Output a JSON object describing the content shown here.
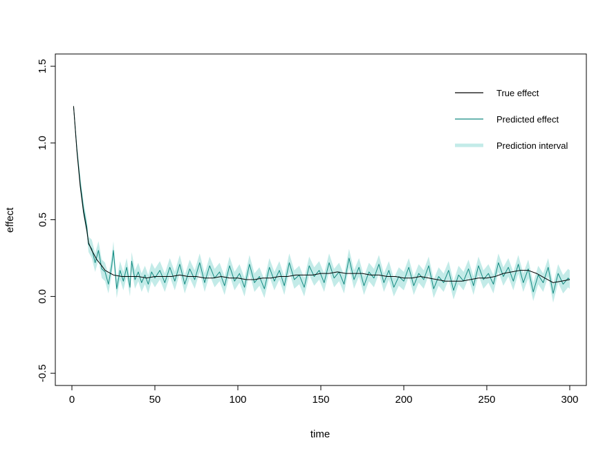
{
  "chart_data": {
    "type": "line",
    "xlabel": "time",
    "ylabel": "effect",
    "xlim": [
      -10,
      310
    ],
    "ylim": [
      -0.58,
      1.58
    ],
    "xticks": [
      0,
      50,
      100,
      150,
      200,
      250,
      300
    ],
    "yticks": [
      -0.5,
      0.0,
      0.5,
      1.0,
      1.5
    ],
    "xtick_labels": [
      "0",
      "50",
      "100",
      "150",
      "200",
      "250",
      "300"
    ],
    "ytick_labels": [
      "-0.5",
      "0.0",
      "0.5",
      "1.0",
      "1.5"
    ],
    "legend_position": "top-right",
    "colors": {
      "true_effect": "#000000",
      "predicted_effect": "#138a80",
      "interval": "#c3ebe8"
    },
    "series": [
      {
        "name": "True effect",
        "x": [
          1,
          3,
          5,
          7,
          9,
          10,
          12,
          15,
          18,
          20,
          25,
          30,
          35,
          40,
          45,
          50,
          55,
          60,
          65,
          70,
          75,
          80,
          85,
          90,
          95,
          100,
          105,
          110,
          115,
          120,
          125,
          130,
          135,
          140,
          145,
          150,
          155,
          160,
          165,
          170,
          175,
          180,
          185,
          190,
          195,
          200,
          205,
          210,
          215,
          220,
          225,
          230,
          235,
          240,
          245,
          250,
          255,
          260,
          265,
          270,
          275,
          280,
          285,
          290,
          295,
          300
        ],
        "y": [
          1.24,
          0.95,
          0.72,
          0.55,
          0.43,
          0.35,
          0.3,
          0.24,
          0.2,
          0.17,
          0.14,
          0.13,
          0.13,
          0.13,
          0.12,
          0.13,
          0.13,
          0.13,
          0.14,
          0.13,
          0.13,
          0.12,
          0.12,
          0.13,
          0.12,
          0.12,
          0.11,
          0.11,
          0.12,
          0.12,
          0.13,
          0.13,
          0.14,
          0.14,
          0.14,
          0.15,
          0.15,
          0.16,
          0.15,
          0.15,
          0.15,
          0.14,
          0.14,
          0.13,
          0.13,
          0.12,
          0.12,
          0.13,
          0.12,
          0.11,
          0.1,
          0.1,
          0.1,
          0.11,
          0.12,
          0.12,
          0.13,
          0.15,
          0.16,
          0.17,
          0.17,
          0.15,
          0.12,
          0.09,
          0.1,
          0.11
        ]
      },
      {
        "name": "Predicted effect",
        "x": [
          1,
          3,
          5,
          7,
          9,
          10,
          12,
          14,
          16,
          18,
          20,
          22,
          24,
          25,
          27,
          29,
          31,
          33,
          35,
          36,
          38,
          40,
          42,
          44,
          46,
          48,
          50,
          53,
          56,
          59,
          62,
          65,
          68,
          71,
          74,
          77,
          80,
          83,
          86,
          89,
          92,
          95,
          98,
          101,
          104,
          107,
          110,
          113,
          116,
          119,
          122,
          125,
          128,
          131,
          134,
          137,
          140,
          143,
          146,
          149,
          152,
          155,
          158,
          161,
          164,
          167,
          170,
          173,
          176,
          179,
          182,
          185,
          188,
          191,
          194,
          197,
          200,
          203,
          206,
          209,
          212,
          215,
          218,
          221,
          224,
          227,
          230,
          233,
          236,
          239,
          242,
          245,
          248,
          251,
          254,
          257,
          260,
          263,
          266,
          269,
          272,
          275,
          278,
          281,
          284,
          287,
          290,
          293,
          296,
          299,
          300
        ],
        "y": [
          1.24,
          0.96,
          0.74,
          0.57,
          0.45,
          0.34,
          0.31,
          0.22,
          0.3,
          0.18,
          0.16,
          0.08,
          0.2,
          0.3,
          0.05,
          0.17,
          0.1,
          0.19,
          0.06,
          0.23,
          0.11,
          0.16,
          0.09,
          0.14,
          0.08,
          0.16,
          0.12,
          0.17,
          0.09,
          0.19,
          0.1,
          0.21,
          0.08,
          0.18,
          0.11,
          0.22,
          0.09,
          0.2,
          0.12,
          0.16,
          0.07,
          0.2,
          0.1,
          0.15,
          0.06,
          0.21,
          0.09,
          0.13,
          0.05,
          0.19,
          0.1,
          0.17,
          0.07,
          0.22,
          0.11,
          0.14,
          0.06,
          0.2,
          0.13,
          0.17,
          0.09,
          0.22,
          0.12,
          0.16,
          0.08,
          0.25,
          0.11,
          0.19,
          0.07,
          0.16,
          0.12,
          0.21,
          0.09,
          0.17,
          0.06,
          0.13,
          0.1,
          0.19,
          0.07,
          0.15,
          0.11,
          0.2,
          0.05,
          0.13,
          0.09,
          0.17,
          0.04,
          0.14,
          0.1,
          0.18,
          0.07,
          0.2,
          0.11,
          0.15,
          0.08,
          0.22,
          0.13,
          0.19,
          0.1,
          0.21,
          0.09,
          0.18,
          0.03,
          0.14,
          0.09,
          0.19,
          0.02,
          0.15,
          0.08,
          0.12,
          0.11
        ]
      }
    ],
    "interval_halfwidth": [
      0.02,
      0.04,
      0.05,
      0.05,
      0.05,
      0.05,
      0.06,
      0.06,
      0.06,
      0.06,
      0.06,
      0.06,
      0.06,
      0.06,
      0.06,
      0.06,
      0.06,
      0.06,
      0.06,
      0.06,
      0.06,
      0.06,
      0.06,
      0.06,
      0.06,
      0.06,
      0.06,
      0.06,
      0.06,
      0.06,
      0.06,
      0.06,
      0.06,
      0.06,
      0.06,
      0.06,
      0.06,
      0.06,
      0.06,
      0.06,
      0.06,
      0.06,
      0.06,
      0.06,
      0.06,
      0.06,
      0.06,
      0.06,
      0.06,
      0.06,
      0.06,
      0.06,
      0.06,
      0.06,
      0.06,
      0.06,
      0.06,
      0.06,
      0.06,
      0.06,
      0.06,
      0.06,
      0.06,
      0.06,
      0.06,
      0.06,
      0.06,
      0.06,
      0.06,
      0.06,
      0.06,
      0.06,
      0.06,
      0.06,
      0.06,
      0.06,
      0.06,
      0.06,
      0.06,
      0.06,
      0.06,
      0.06,
      0.06,
      0.06,
      0.06,
      0.06,
      0.06,
      0.06,
      0.06,
      0.06,
      0.06,
      0.06,
      0.06,
      0.06,
      0.06,
      0.06,
      0.06,
      0.06,
      0.06,
      0.06,
      0.06,
      0.06,
      0.06,
      0.06,
      0.06,
      0.06,
      0.06,
      0.06,
      0.06,
      0.06,
      0.06
    ],
    "legend": [
      {
        "label": "True effect",
        "key": "true_effect"
      },
      {
        "label": "Predicted effect",
        "key": "predicted_effect"
      },
      {
        "label": "Prediction interval",
        "key": "interval"
      }
    ]
  }
}
